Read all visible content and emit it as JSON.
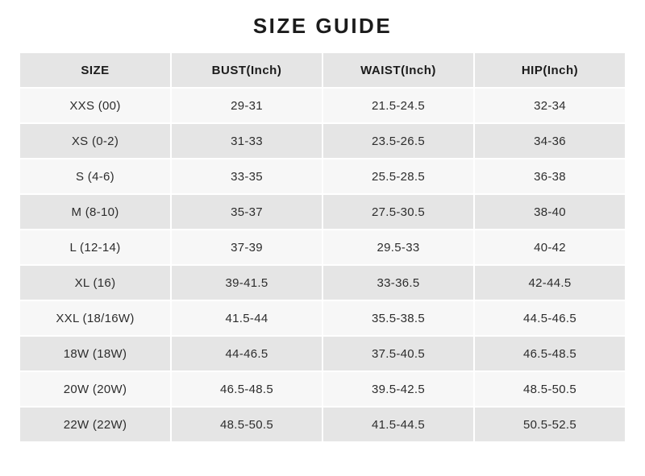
{
  "page": {
    "title": "SIZE GUIDE"
  },
  "colors": {
    "page_bg": "#ffffff",
    "header_bg": "#e5e5e5",
    "row_bg": "#f7f7f7",
    "row_alt_bg": "#e5e5e5",
    "text": "#2d2d2d",
    "heading_text": "#1b1b1b"
  },
  "table": {
    "headers": [
      "SIZE",
      "BUST(Inch)",
      "WAIST(Inch)",
      "HIP(Inch)"
    ],
    "rows": [
      [
        "XXS (00)",
        "29-31",
        "21.5-24.5",
        "32-34"
      ],
      [
        "XS (0-2)",
        "31-33",
        "23.5-26.5",
        "34-36"
      ],
      [
        "S (4-6)",
        "33-35",
        "25.5-28.5",
        "36-38"
      ],
      [
        "M (8-10)",
        "35-37",
        "27.5-30.5",
        "38-40"
      ],
      [
        "L (12-14)",
        "37-39",
        "29.5-33",
        "40-42"
      ],
      [
        "XL (16)",
        "39-41.5",
        "33-36.5",
        "42-44.5"
      ],
      [
        "XXL (18/16W)",
        "41.5-44",
        "35.5-38.5",
        "44.5-46.5"
      ],
      [
        "18W (18W)",
        "44-46.5",
        "37.5-40.5",
        "46.5-48.5"
      ],
      [
        "20W (20W)",
        "46.5-48.5",
        "39.5-42.5",
        "48.5-50.5"
      ],
      [
        "22W (22W)",
        "48.5-50.5",
        "41.5-44.5",
        "50.5-52.5"
      ]
    ]
  }
}
